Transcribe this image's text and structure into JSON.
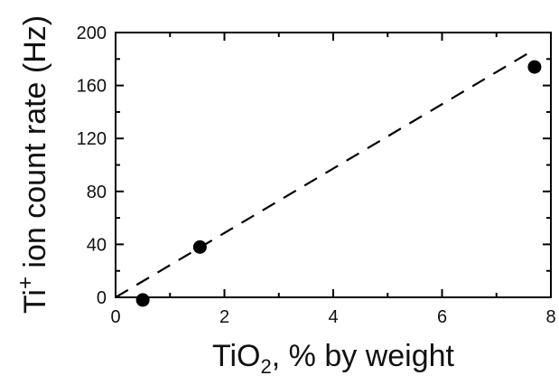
{
  "chart_data": {
    "type": "scatter",
    "title": "",
    "xlabel": {
      "base": "TiO",
      "subscript": "2",
      "rest": ", % by weight"
    },
    "ylabel": {
      "base": "Ti",
      "superscript": "+",
      "rest": " ion count rate (Hz)"
    },
    "xlim": [
      0,
      8
    ],
    "ylim": [
      0,
      200
    ],
    "x_ticks": [
      0,
      2,
      4,
      6,
      8
    ],
    "x_tick_labels": [
      "0",
      "2",
      "4",
      "6",
      "8"
    ],
    "x_minor_step": 1,
    "y_ticks": [
      0,
      40,
      80,
      120,
      160,
      200
    ],
    "y_tick_labels": [
      "0",
      "40",
      "80",
      "120",
      "160",
      "200"
    ],
    "y_minor_step": 20,
    "grid": false,
    "legend": "none",
    "series": [
      {
        "type": "scatter",
        "x": [
          0.5,
          1.55,
          7.7
        ],
        "y": [
          -2,
          38,
          174
        ],
        "color": "#000000"
      },
      {
        "type": "line",
        "style": "dashed",
        "x": [
          0.0,
          7.65
        ],
        "y": [
          0.0,
          186
        ],
        "color": "#000000"
      }
    ]
  }
}
